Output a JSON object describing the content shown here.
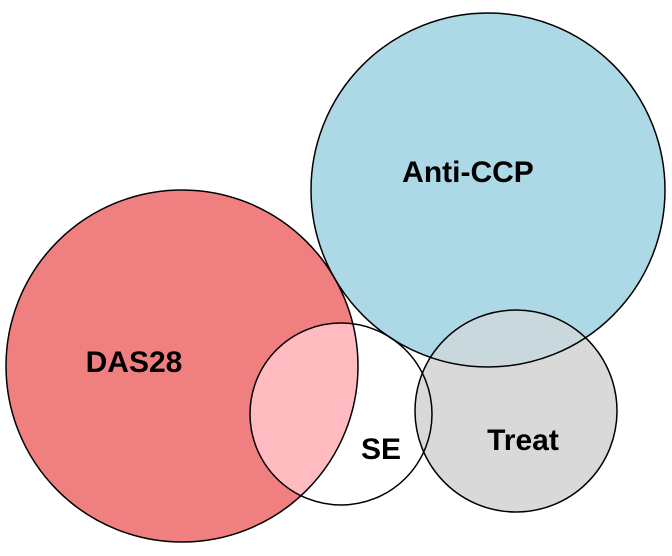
{
  "diagram": {
    "type": "euler",
    "sets": [
      {
        "id": "das28",
        "label": "DAS28",
        "color": "#f08080"
      },
      {
        "id": "anti_ccp",
        "label": "Anti-CCP",
        "color": "#add8e6"
      },
      {
        "id": "se",
        "label": "SE",
        "color": "#ffffff"
      },
      {
        "id": "treat",
        "label": "Treat",
        "color": "#d9d9d9"
      }
    ],
    "overlaps": [
      {
        "sets": [
          "das28",
          "se"
        ],
        "color": "#ffbbbf"
      },
      {
        "sets": [
          "anti_ccp",
          "treat"
        ],
        "color": "#c8d8dd"
      }
    ]
  }
}
